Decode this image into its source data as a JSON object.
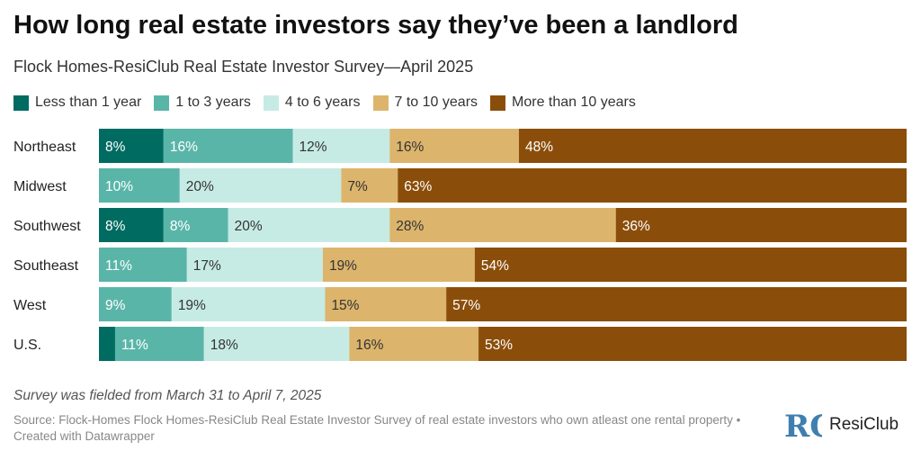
{
  "header": {
    "title": "How long real estate investors say they’ve been a landlord",
    "subtitle": "Flock Homes-ResiClub Real Estate Investor Survey—April 2025"
  },
  "footer": {
    "note": "Survey was fielded from March 31 to April 7, 2025",
    "source": "Source: Flock-Homes Flock Homes-ResiClub Real Estate Investor Survey of real estate investors who own atleast one rental property • Created with Datawrapper",
    "logo_mark": "RC",
    "logo_text": "ResiClub"
  },
  "colors": {
    "text_on_dark": "#ffffff",
    "text_on_light": "#333333"
  },
  "chart_data": {
    "type": "bar",
    "orientation": "horizontal",
    "stacked": true,
    "percent_total": 100,
    "title": "How long real estate investors say they’ve been a landlord",
    "subtitle": "Flock Homes-ResiClub Real Estate Investor Survey—April 2025",
    "legend_position": "top-left",
    "categories": [
      "Northeast",
      "Midwest",
      "Southwest",
      "Southeast",
      "West",
      "U.S."
    ],
    "series": [
      {
        "name": "Less than 1 year",
        "color": "#006b61",
        "dark": true,
        "values": [
          8,
          0,
          8,
          0,
          0,
          2
        ],
        "labels": [
          "8%",
          "",
          "8%",
          "",
          "",
          ""
        ]
      },
      {
        "name": "1 to 3 years",
        "color": "#5ab5a9",
        "dark": true,
        "values": [
          16,
          10,
          8,
          11,
          9,
          11
        ],
        "labels": [
          "16%",
          "10%",
          "8%",
          "11%",
          "9%",
          "11%"
        ]
      },
      {
        "name": "4 to 6 years",
        "color": "#c6ebe4",
        "dark": false,
        "values": [
          12,
          20,
          20,
          17,
          19,
          18
        ],
        "labels": [
          "12%",
          "20%",
          "20%",
          "17%",
          "19%",
          "18%"
        ]
      },
      {
        "name": "7 to 10 years",
        "color": "#dcb46c",
        "dark": false,
        "values": [
          16,
          7,
          28,
          19,
          15,
          16
        ],
        "labels": [
          "16%",
          "7%",
          "28%",
          "19%",
          "15%",
          "16%"
        ]
      },
      {
        "name": "More than 10 years",
        "color": "#8b4e0a",
        "dark": true,
        "values": [
          48,
          63,
          36,
          54,
          57,
          53
        ],
        "labels": [
          "48%",
          "63%",
          "36%",
          "54%",
          "57%",
          "53%"
        ]
      }
    ]
  }
}
